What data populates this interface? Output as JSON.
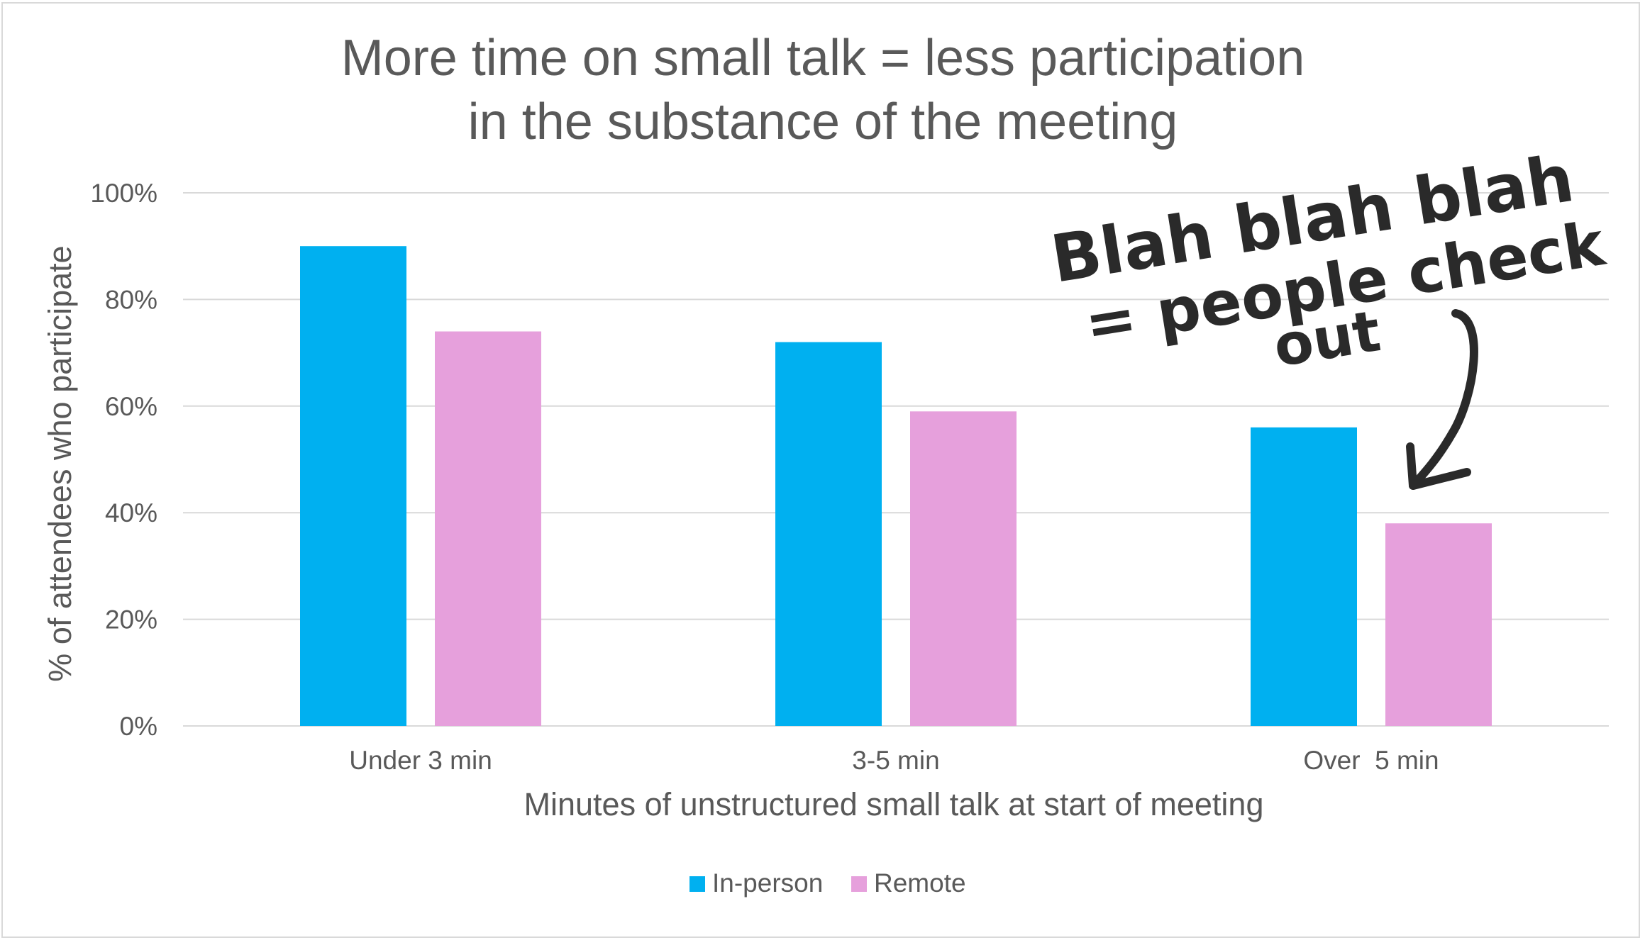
{
  "chart_data": {
    "type": "bar",
    "title_lines": [
      "More time on small talk = less participation",
      "in the substance of the meeting"
    ],
    "xlabel": "Minutes of unstructured small talk at start of meeting",
    "ylabel": "% of attendees who participate",
    "categories": [
      "Under 3 min",
      "3-5 min",
      "Over  5 min"
    ],
    "series": [
      {
        "name": "In-person",
        "color": "#00b0f0",
        "values": [
          90,
          72,
          56
        ]
      },
      {
        "name": "Remote",
        "color": "#e6a0dc",
        "values": [
          74,
          59,
          38
        ]
      }
    ],
    "ylim": [
      0,
      100
    ],
    "yticks": [
      0,
      20,
      40,
      60,
      80,
      100
    ],
    "ytick_labels": [
      "0%",
      "20%",
      "40%",
      "60%",
      "80%",
      "100%"
    ],
    "grid": true,
    "legend_position": "bottom",
    "annotation_lines": [
      "Blah blah blah",
      "= people check",
      "out"
    ]
  }
}
